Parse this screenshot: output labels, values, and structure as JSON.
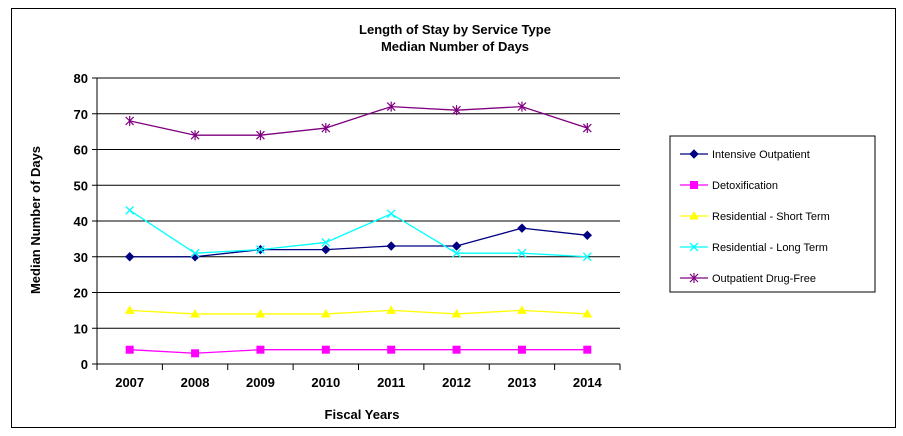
{
  "chart_data": {
    "type": "line",
    "title": "Length of Stay by Service Type",
    "subtitle": "Median Number of Days",
    "xlabel": "Fiscal Years",
    "ylabel": "Median Number of Days",
    "categories": [
      "2007",
      "2008",
      "2009",
      "2010",
      "2011",
      "2012",
      "2013",
      "2014"
    ],
    "ylim": [
      0,
      80
    ],
    "yticks": [
      "0",
      "10",
      "20",
      "30",
      "40",
      "50",
      "60",
      "70",
      "80"
    ],
    "grid": true,
    "legend_position": "right",
    "series": [
      {
        "name": "Intensive Outpatient",
        "color": "#000080",
        "marker": "diamond",
        "values": [
          30,
          30,
          32,
          32,
          33,
          33,
          38,
          36
        ]
      },
      {
        "name": "Detoxification",
        "color": "#ff00ff",
        "marker": "square",
        "values": [
          4,
          3,
          4,
          4,
          4,
          4,
          4,
          4
        ]
      },
      {
        "name": "Residential - Short Term",
        "color": "#ffff00",
        "marker": "triangle",
        "values": [
          15,
          14,
          14,
          14,
          15,
          14,
          15,
          14
        ]
      },
      {
        "name": "Residential - Long Term",
        "color": "#00ffff",
        "marker": "x",
        "values": [
          43,
          31,
          32,
          34,
          42,
          31,
          31,
          30
        ]
      },
      {
        "name": "Outpatient Drug-Free",
        "color": "#800080",
        "marker": "star",
        "values": [
          68,
          64,
          64,
          66,
          72,
          71,
          72,
          66
        ]
      }
    ]
  }
}
